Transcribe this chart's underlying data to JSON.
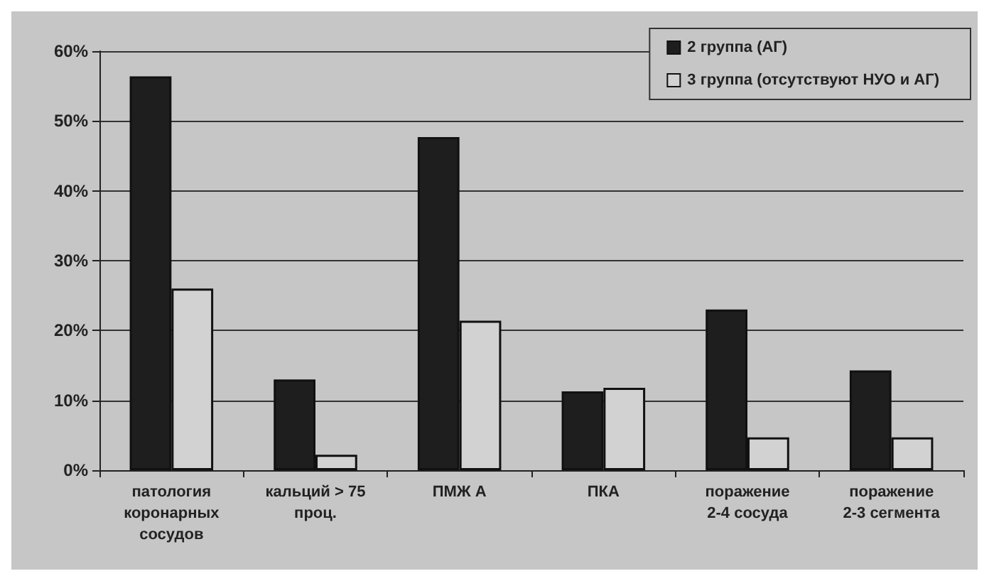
{
  "chart_data": {
    "type": "bar",
    "categories": [
      "патология\nкоронарных\nсосудов",
      "кальций > 75\nпроц.",
      "ПМЖ А",
      "ПКА",
      "поражение\n2-4 сосуда",
      "поражение\n2-3 сегмента"
    ],
    "series": [
      {
        "name": "2 группа (АГ)",
        "color": "#1e1e1e",
        "values": [
          56.4,
          13,
          47.7,
          11.3,
          23,
          14.3
        ]
      },
      {
        "name": "3 группа (отсутствуют НУО и АГ)",
        "color": "#d2d2d2",
        "values": [
          26,
          2.2,
          21.4,
          11.8,
          4.7,
          4.7
        ]
      }
    ],
    "ylim": [
      0,
      60
    ],
    "yticks": [
      {
        "value": 0,
        "label": "0%"
      },
      {
        "value": 10,
        "label": "10%"
      },
      {
        "value": 20,
        "label": "20%"
      },
      {
        "value": 30,
        "label": "30%"
      },
      {
        "value": 40,
        "label": "40%"
      },
      {
        "value": 50,
        "label": "50%"
      },
      {
        "value": 60,
        "label": "60%"
      }
    ],
    "grid": "y",
    "legend": "top right"
  }
}
